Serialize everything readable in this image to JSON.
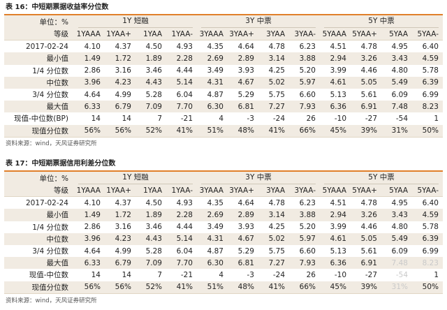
{
  "tables": [
    {
      "title": "表 16：中短期票据收益率分位数",
      "unit_label": "单位：%",
      "grade_label": "等级",
      "groups": [
        "1Y 短融",
        "3Y 中票",
        "5Y 中票"
      ],
      "columns": [
        "1YAAA",
        "1YAA+",
        "1YAA",
        "1YAA-",
        "3YAAA",
        "3YAA+",
        "3YAA",
        "3YAA-",
        "5YAAA",
        "5YAA+",
        "5YAA",
        "5YAA-"
      ],
      "rows": [
        {
          "label": "2017-02-24",
          "values": [
            "4.10",
            "4.37",
            "4.50",
            "4.93",
            "4.35",
            "4.64",
            "4.78",
            "6.23",
            "4.51",
            "4.78",
            "4.95",
            "6.40"
          ]
        },
        {
          "label": "最小值",
          "values": [
            "1.49",
            "1.72",
            "1.89",
            "2.28",
            "2.69",
            "2.89",
            "3.14",
            "3.88",
            "2.94",
            "3.26",
            "3.43",
            "4.59"
          ]
        },
        {
          "label": "1/4 分位数",
          "values": [
            "2.86",
            "3.16",
            "3.46",
            "4.44",
            "3.49",
            "3.93",
            "4.25",
            "5.20",
            "3.99",
            "4.46",
            "4.80",
            "5.78"
          ]
        },
        {
          "label": "中位数",
          "values": [
            "3.96",
            "4.23",
            "4.43",
            "5.14",
            "4.31",
            "4.67",
            "5.02",
            "5.97",
            "4.61",
            "5.05",
            "5.49",
            "6.39"
          ]
        },
        {
          "label": "3/4 分位数",
          "values": [
            "4.64",
            "4.99",
            "5.28",
            "6.04",
            "4.87",
            "5.29",
            "5.75",
            "6.60",
            "5.13",
            "5.61",
            "6.09",
            "6.99"
          ]
        },
        {
          "label": "最大值",
          "values": [
            "6.33",
            "6.79",
            "7.09",
            "7.70",
            "6.30",
            "6.81",
            "7.27",
            "7.93",
            "6.36",
            "6.91",
            "7.48",
            "8.23"
          ]
        },
        {
          "label": "现值-中位数(BP)",
          "values": [
            "14",
            "14",
            "7",
            "-21",
            "4",
            "-3",
            "-24",
            "26",
            "-10",
            "-27",
            "-54",
            "1"
          ]
        },
        {
          "label": "现值分位数",
          "values": [
            "56%",
            "56%",
            "52%",
            "41%",
            "51%",
            "48%",
            "41%",
            "66%",
            "45%",
            "39%",
            "31%",
            "50%"
          ]
        }
      ],
      "source": "资料来源：wind，天风证券研究所"
    },
    {
      "title": "表 17：中短期票据信用利差分位数",
      "unit_label": "单位：%",
      "grade_label": "等级",
      "groups": [
        "1Y 短融",
        "3Y 中票",
        "5Y 中票"
      ],
      "columns": [
        "1YAAA",
        "1YAA+",
        "1YAA",
        "1YAA-",
        "3YAAA",
        "3YAA+",
        "3YAA",
        "3YAA-",
        "5YAAA",
        "5YAA+",
        "5YAA",
        "5YAA-"
      ],
      "rows": [
        {
          "label": "2017-02-24",
          "values": [
            "4.10",
            "4.37",
            "4.50",
            "4.93",
            "4.35",
            "4.64",
            "4.78",
            "6.23",
            "4.51",
            "4.78",
            "4.95",
            "6.40"
          ]
        },
        {
          "label": "最小值",
          "values": [
            "1.49",
            "1.72",
            "1.89",
            "2.28",
            "2.69",
            "2.89",
            "3.14",
            "3.88",
            "2.94",
            "3.26",
            "3.43",
            "4.59"
          ]
        },
        {
          "label": "1/4 分位数",
          "values": [
            "2.86",
            "3.16",
            "3.46",
            "4.44",
            "3.49",
            "3.93",
            "4.25",
            "5.20",
            "3.99",
            "4.46",
            "4.80",
            "5.78"
          ]
        },
        {
          "label": "中位数",
          "values": [
            "3.96",
            "4.23",
            "4.43",
            "5.14",
            "4.31",
            "4.67",
            "5.02",
            "5.97",
            "4.61",
            "5.05",
            "5.49",
            "6.39"
          ]
        },
        {
          "label": "3/4 分位数",
          "values": [
            "4.64",
            "4.99",
            "5.28",
            "6.04",
            "4.87",
            "5.29",
            "5.75",
            "6.60",
            "5.13",
            "5.61",
            "6.09",
            "6.99"
          ]
        },
        {
          "label": "最大值",
          "values": [
            "6.33",
            "6.79",
            "7.09",
            "7.70",
            "6.30",
            "6.81",
            "7.27",
            "7.93",
            "6.36",
            "6.91",
            "7.48",
            "8.23"
          ]
        },
        {
          "label": "现值-中位数",
          "values": [
            "14",
            "14",
            "7",
            "-21",
            "4",
            "-3",
            "-24",
            "26",
            "-10",
            "-27",
            "-54",
            "1"
          ]
        },
        {
          "label": "现值分位数",
          "values": [
            "56%",
            "56%",
            "52%",
            "41%",
            "51%",
            "48%",
            "41%",
            "66%",
            "45%",
            "39%",
            "31%",
            "50%"
          ]
        }
      ],
      "source": "资料来源：wind，天风证券研究所"
    }
  ]
}
